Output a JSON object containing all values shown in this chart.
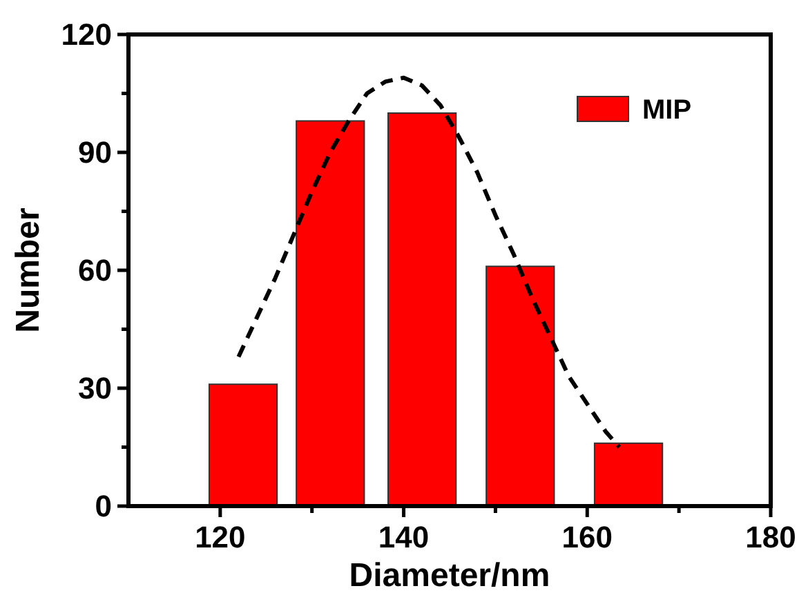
{
  "chart_data": {
    "type": "bar",
    "xlabel": "Diameter/nm",
    "ylabel": "Number",
    "xlim": [
      110,
      180
    ],
    "xticks": [
      120,
      {
        "value": 130,
        "label": null
      },
      140,
      {
        "value": 150,
        "label": null
      },
      160,
      {
        "value": 170,
        "label": null
      },
      180
    ],
    "ylim": [
      0,
      120
    ],
    "yticks": [
      0,
      {
        "value": 15,
        "label": null
      },
      30,
      {
        "value": 45,
        "label": null
      },
      60,
      {
        "value": 75,
        "label": null
      },
      90,
      {
        "value": 105,
        "label": null
      },
      120
    ],
    "legend": "top right",
    "grid": false,
    "series": [
      {
        "name": "MIP",
        "color": "#ff0000",
        "x": [
          122.5,
          132,
          142,
          152.7,
          164.5
        ],
        "values": [
          31,
          98,
          100,
          61,
          16
        ]
      },
      {
        "type": "line",
        "color": "#000000",
        "line_style": "dashed",
        "marker": "none",
        "x": [
          122,
          124,
          126,
          128,
          130,
          132,
          134,
          136,
          138,
          140,
          142,
          144,
          146,
          148,
          150,
          152,
          154,
          156,
          158,
          160,
          162,
          163.5
        ],
        "values": [
          38,
          48,
          58,
          69,
          80,
          90,
          98,
          105,
          108,
          109,
          107,
          102,
          94,
          85,
          74,
          64,
          53,
          43,
          33,
          26,
          19,
          15
        ]
      }
    ]
  }
}
